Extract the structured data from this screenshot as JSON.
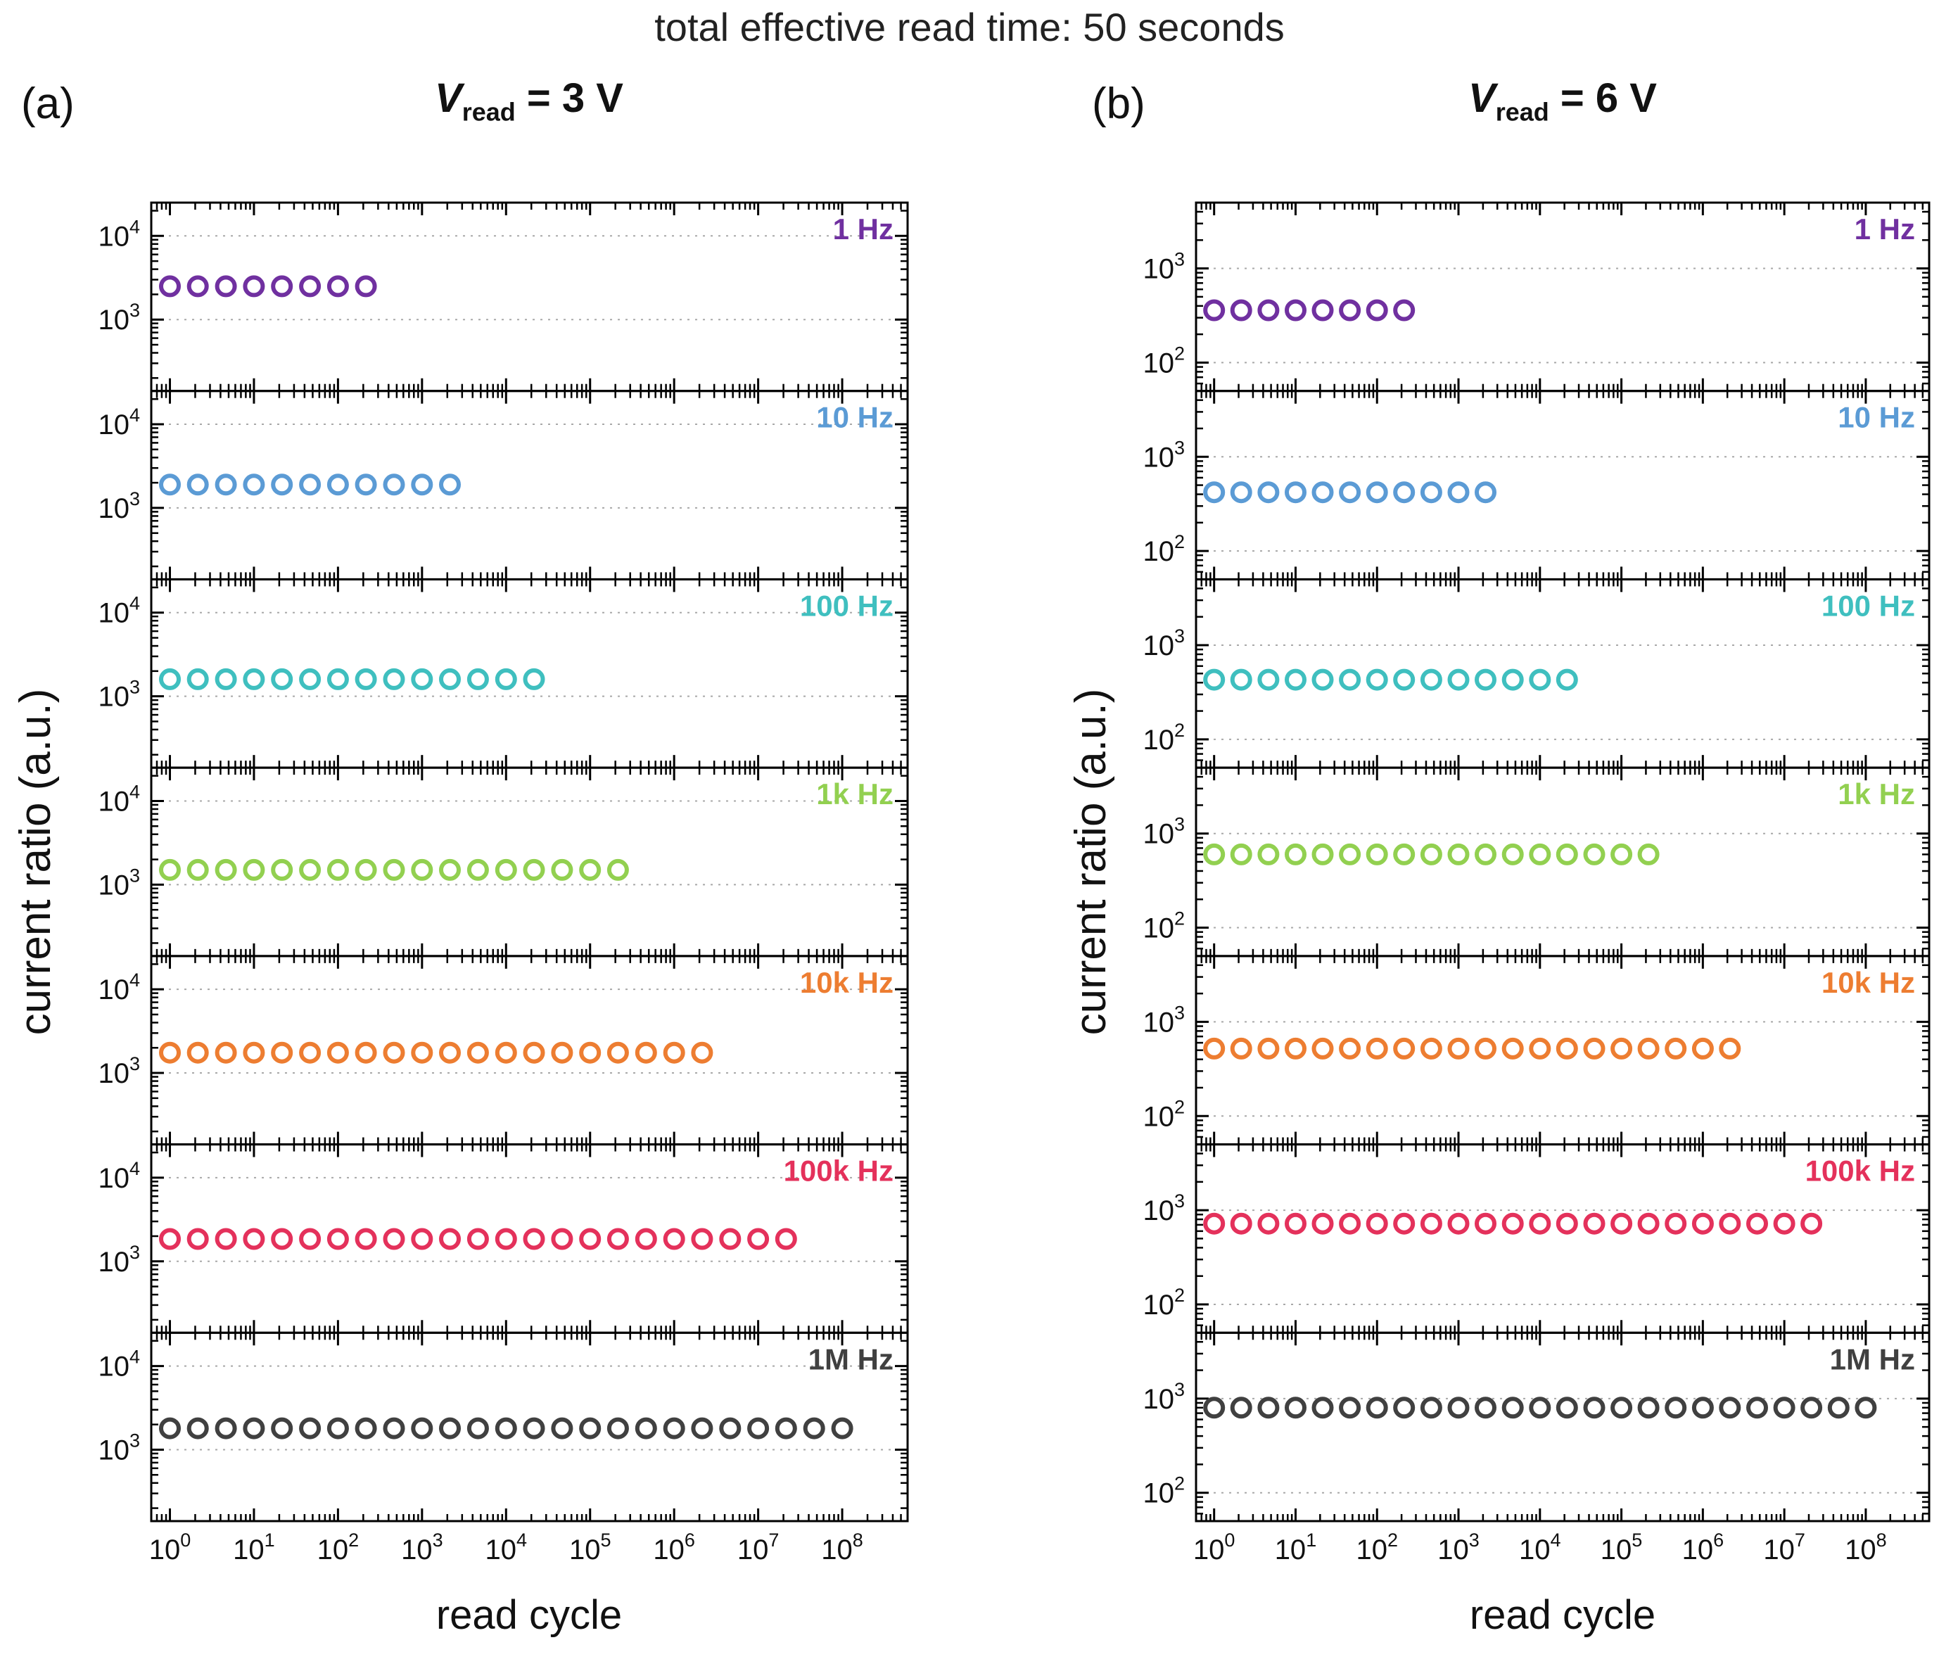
{
  "title": "total effective read time: 50 seconds",
  "panel_a": {
    "label": "(a)",
    "title": {
      "v": "V",
      "sub": "read",
      "rest": " = 3 V"
    },
    "ylabel": "current ratio (a.u.)",
    "xlabel": "read cycle"
  },
  "panel_b": {
    "label": "(b)",
    "title": {
      "v": "V",
      "sub": "read",
      "rest": " = 6 V"
    },
    "ylabel": "current ratio (a.u.)",
    "xlabel": "read cycle"
  },
  "chart_data": [
    {
      "type": "scatter",
      "panel": "a",
      "title": "V_read = 3 V",
      "xlabel": "read cycle",
      "ylabel": "current ratio (a.u.)",
      "xscale": "log",
      "yscale": "log",
      "xlim": [
        0.6,
        600000000
      ],
      "ylim": [
        140,
        25000
      ],
      "xtick_exponents": [
        0,
        1,
        2,
        3,
        4,
        5,
        6,
        7,
        8
      ],
      "ytick_exponents": [
        3,
        4
      ],
      "marker": "open-circle",
      "grid": "dotted-horizontal-at-decades",
      "series": [
        {
          "name": "1 Hz",
          "color": "#7030A0",
          "y": 2500,
          "x": [
            1,
            2.15,
            4.64,
            10,
            21.5,
            46.4,
            100,
            215
          ]
        },
        {
          "name": "10 Hz",
          "color": "#5B9BD5",
          "y": 1900,
          "x": [
            1,
            2.15,
            4.64,
            10,
            21.5,
            46.4,
            100,
            215,
            464,
            1000,
            2150
          ]
        },
        {
          "name": "100 Hz",
          "color": "#3FBFBF",
          "y": 1600,
          "x": [
            1,
            2.15,
            4.64,
            10,
            21.5,
            46.4,
            100,
            215,
            464,
            1000,
            2150,
            4640,
            10000,
            21500
          ]
        },
        {
          "name": "1k Hz",
          "color": "#92D050",
          "y": 1500,
          "x": [
            1,
            2.15,
            4.64,
            10,
            21.5,
            46.4,
            100,
            215,
            464,
            1000,
            2150,
            4640,
            10000,
            21500,
            46400,
            100000,
            215000
          ]
        },
        {
          "name": "10k Hz",
          "color": "#ED7D31",
          "y": 1750,
          "x": [
            1,
            2.15,
            4.64,
            10,
            21.5,
            46.4,
            100,
            215,
            464,
            1000,
            2150,
            4640,
            10000,
            21500,
            46400,
            100000,
            215000,
            464000,
            1000000,
            2150000
          ]
        },
        {
          "name": "100k Hz",
          "color": "#E4315B",
          "y": 1850,
          "x": [
            1,
            2.15,
            4.64,
            10,
            21.5,
            46.4,
            100,
            215,
            464,
            1000,
            2150,
            4640,
            10000,
            21500,
            46400,
            100000,
            215000,
            464000,
            1000000,
            2150000,
            4640000,
            10000000,
            21500000
          ]
        },
        {
          "name": "1M Hz",
          "color": "#404040",
          "y": 1800,
          "x": [
            1,
            2.15,
            4.64,
            10,
            21.5,
            46.4,
            100,
            215,
            464,
            1000,
            2150,
            4640,
            10000,
            21500,
            46400,
            100000,
            215000,
            464000,
            1000000,
            2150000,
            4640000,
            10000000,
            21500000,
            46400000,
            100000000
          ]
        }
      ]
    },
    {
      "type": "scatter",
      "panel": "b",
      "title": "V_read = 6 V",
      "xlabel": "read cycle",
      "ylabel": "current ratio (a.u.)",
      "xscale": "log",
      "yscale": "log",
      "xlim": [
        0.6,
        600000000
      ],
      "ylim": [
        50,
        5000
      ],
      "xtick_exponents": [
        0,
        1,
        2,
        3,
        4,
        5,
        6,
        7,
        8
      ],
      "ytick_exponents": [
        2,
        3
      ],
      "marker": "open-circle",
      "grid": "dotted-horizontal-at-decades",
      "series": [
        {
          "name": "1 Hz",
          "color": "#7030A0",
          "y": 360,
          "x": [
            1,
            2.15,
            4.64,
            10,
            21.5,
            46.4,
            100,
            215
          ]
        },
        {
          "name": "10 Hz",
          "color": "#5B9BD5",
          "y": 420,
          "x": [
            1,
            2.15,
            4.64,
            10,
            21.5,
            46.4,
            100,
            215,
            464,
            1000,
            2150
          ]
        },
        {
          "name": "100 Hz",
          "color": "#3FBFBF",
          "y": 430,
          "x": [
            1,
            2.15,
            4.64,
            10,
            21.5,
            46.4,
            100,
            215,
            464,
            1000,
            2150,
            4640,
            10000,
            21500
          ]
        },
        {
          "name": "1k Hz",
          "color": "#92D050",
          "y": 600,
          "x": [
            1,
            2.15,
            4.64,
            10,
            21.5,
            46.4,
            100,
            215,
            464,
            1000,
            2150,
            4640,
            10000,
            21500,
            46400,
            100000,
            215000
          ]
        },
        {
          "name": "10k Hz",
          "color": "#ED7D31",
          "y": 520,
          "x": [
            1,
            2.15,
            4.64,
            10,
            21.5,
            46.4,
            100,
            215,
            464,
            1000,
            2150,
            4640,
            10000,
            21500,
            46400,
            100000,
            215000,
            464000,
            1000000,
            2150000
          ]
        },
        {
          "name": "100k Hz",
          "color": "#E4315B",
          "y": 720,
          "x": [
            1,
            2.15,
            4.64,
            10,
            21.5,
            46.4,
            100,
            215,
            464,
            1000,
            2150,
            4640,
            10000,
            21500,
            46400,
            100000,
            215000,
            464000,
            1000000,
            2150000,
            4640000,
            10000000,
            21500000
          ]
        },
        {
          "name": "1M Hz",
          "color": "#404040",
          "y": 800,
          "x": [
            1,
            2.15,
            4.64,
            10,
            21.5,
            46.4,
            100,
            215,
            464,
            1000,
            2150,
            4640,
            10000,
            21500,
            46400,
            100000,
            215000,
            464000,
            1000000,
            2150000,
            4640000,
            10000000,
            21500000,
            46400000,
            100000000
          ]
        }
      ]
    }
  ]
}
